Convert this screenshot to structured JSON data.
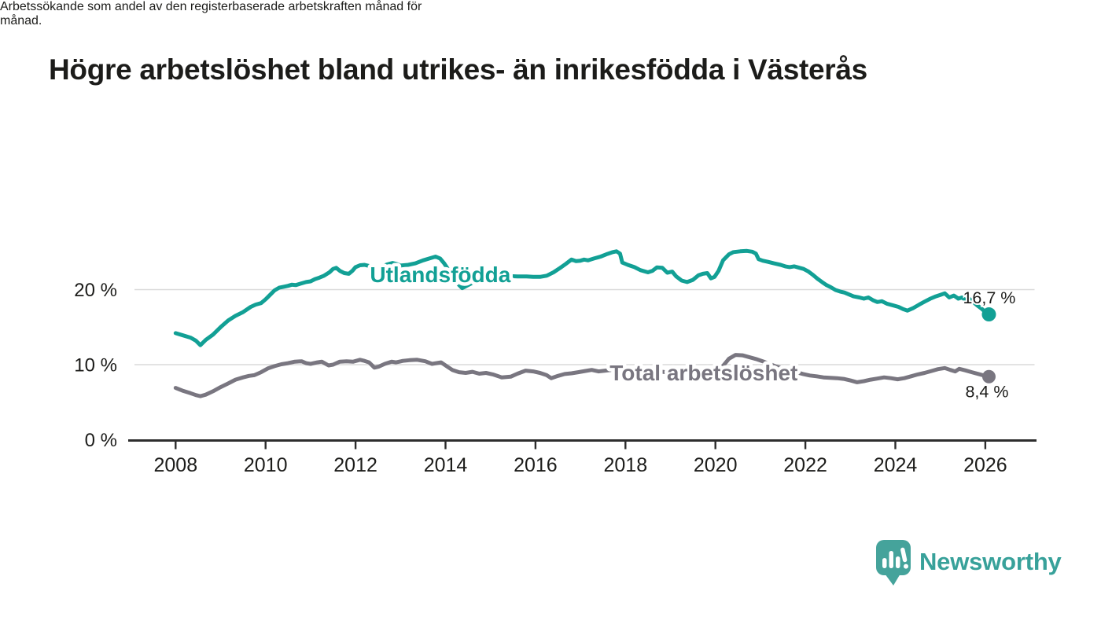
{
  "header": {
    "title": "Högre arbetslöshet bland utrikes- än inrikesfödda i Västerås",
    "subtitle_lines": [
      "Arbetssökande som andel av den registerbaserade arbetskraften månad för",
      "månad."
    ]
  },
  "footer": {
    "brand": "Newsworthy",
    "logo_icon": "speech-bubble-bar-chart-icon"
  },
  "colors": {
    "foreign_born_line": "#12a095",
    "total_line": "#797680",
    "gridline": "#dadada",
    "axis": "#2d2d2d",
    "text": "#1c1c1a",
    "brand_teal": "#45a39b"
  },
  "chart_data": {
    "type": "line",
    "title": "Högre arbetslöshet bland utrikes- än inrikesfödda i Västerås",
    "subtitle": "Arbetssökande som andel av den registerbaserade arbetskraften månad för månad.",
    "xlabel": "",
    "ylabel": "",
    "unit": "%",
    "x_axis": {
      "range": [
        2006.95,
        2027.15
      ],
      "ticks": [
        2008,
        2010,
        2012,
        2014,
        2016,
        2018,
        2020,
        2022,
        2024,
        2026
      ]
    },
    "y_axis": {
      "range": [
        0,
        26.3
      ],
      "ticks": [
        {
          "value": 0,
          "label": "0 %"
        },
        {
          "value": 10,
          "label": "10 %"
        },
        {
          "value": 20,
          "label": "20 %"
        }
      ],
      "grid": true
    },
    "legend_position": "inline-labels-on-lines",
    "series": [
      {
        "name": "Utlandsfödda",
        "color": "#12a095",
        "end_value": 16.7,
        "end_label": "16,7 %",
        "label_at": [
          2012.32,
          21.0
        ],
        "points": [
          [
            2008.0,
            14.2
          ],
          [
            2008.17,
            13.9
          ],
          [
            2008.33,
            13.6
          ],
          [
            2008.45,
            13.2
          ],
          [
            2008.55,
            12.6
          ],
          [
            2008.67,
            13.3
          ],
          [
            2008.83,
            14.0
          ],
          [
            2009.0,
            15.0
          ],
          [
            2009.17,
            15.9
          ],
          [
            2009.33,
            16.5
          ],
          [
            2009.5,
            17.0
          ],
          [
            2009.67,
            17.7
          ],
          [
            2009.78,
            18.0
          ],
          [
            2009.9,
            18.2
          ],
          [
            2010.0,
            18.7
          ],
          [
            2010.1,
            19.3
          ],
          [
            2010.2,
            19.9
          ],
          [
            2010.3,
            20.25
          ],
          [
            2010.42,
            20.4
          ],
          [
            2010.5,
            20.5
          ],
          [
            2010.58,
            20.65
          ],
          [
            2010.67,
            20.6
          ],
          [
            2010.78,
            20.8
          ],
          [
            2010.9,
            21.0
          ],
          [
            2011.0,
            21.1
          ],
          [
            2011.1,
            21.4
          ],
          [
            2011.2,
            21.6
          ],
          [
            2011.3,
            21.85
          ],
          [
            2011.42,
            22.3
          ],
          [
            2011.5,
            22.75
          ],
          [
            2011.57,
            22.9
          ],
          [
            2011.65,
            22.5
          ],
          [
            2011.75,
            22.2
          ],
          [
            2011.85,
            22.1
          ],
          [
            2011.93,
            22.5
          ],
          [
            2012.0,
            23.0
          ],
          [
            2012.1,
            23.25
          ],
          [
            2012.2,
            23.3
          ],
          [
            2012.3,
            23.15
          ],
          [
            2012.42,
            22.9
          ],
          [
            2012.5,
            22.8
          ],
          [
            2012.6,
            23.05
          ],
          [
            2012.7,
            23.35
          ],
          [
            2012.82,
            23.55
          ],
          [
            2012.92,
            23.4
          ],
          [
            2013.0,
            23.2
          ],
          [
            2013.17,
            23.3
          ],
          [
            2013.33,
            23.5
          ],
          [
            2013.5,
            23.9
          ],
          [
            2013.67,
            24.2
          ],
          [
            2013.78,
            24.4
          ],
          [
            2013.88,
            24.15
          ],
          [
            2013.97,
            23.5
          ],
          [
            2014.07,
            22.6
          ],
          [
            2014.17,
            21.6
          ],
          [
            2014.27,
            20.8
          ],
          [
            2014.37,
            20.2
          ],
          [
            2014.47,
            20.5
          ],
          [
            2014.58,
            20.85
          ],
          [
            2014.7,
            21.15
          ],
          [
            2014.82,
            21.4
          ],
          [
            2014.93,
            21.6
          ],
          [
            2015.05,
            21.75
          ],
          [
            2015.2,
            21.85
          ],
          [
            2015.4,
            21.8
          ],
          [
            2015.6,
            21.75
          ],
          [
            2015.8,
            21.75
          ],
          [
            2015.95,
            21.7
          ],
          [
            2016.1,
            21.7
          ],
          [
            2016.25,
            21.85
          ],
          [
            2016.4,
            22.3
          ],
          [
            2016.55,
            22.9
          ],
          [
            2016.67,
            23.4
          ],
          [
            2016.8,
            24.0
          ],
          [
            2016.9,
            23.8
          ],
          [
            2017.0,
            23.85
          ],
          [
            2017.08,
            24.0
          ],
          [
            2017.17,
            23.9
          ],
          [
            2017.3,
            24.15
          ],
          [
            2017.45,
            24.4
          ],
          [
            2017.6,
            24.75
          ],
          [
            2017.72,
            25.0
          ],
          [
            2017.8,
            25.1
          ],
          [
            2017.88,
            24.8
          ],
          [
            2017.93,
            23.6
          ],
          [
            2018.05,
            23.3
          ],
          [
            2018.2,
            23.0
          ],
          [
            2018.33,
            22.6
          ],
          [
            2018.5,
            22.3
          ],
          [
            2018.6,
            22.5
          ],
          [
            2018.7,
            22.95
          ],
          [
            2018.82,
            22.9
          ],
          [
            2018.93,
            22.25
          ],
          [
            2019.04,
            22.4
          ],
          [
            2019.13,
            21.75
          ],
          [
            2019.25,
            21.2
          ],
          [
            2019.37,
            21.0
          ],
          [
            2019.5,
            21.3
          ],
          [
            2019.62,
            21.9
          ],
          [
            2019.72,
            22.1
          ],
          [
            2019.82,
            22.2
          ],
          [
            2019.9,
            21.5
          ],
          [
            2019.98,
            21.7
          ],
          [
            2020.07,
            22.5
          ],
          [
            2020.17,
            23.9
          ],
          [
            2020.3,
            24.7
          ],
          [
            2020.4,
            25.0
          ],
          [
            2020.55,
            25.1
          ],
          [
            2020.7,
            25.15
          ],
          [
            2020.82,
            25.05
          ],
          [
            2020.9,
            24.8
          ],
          [
            2020.96,
            24.05
          ],
          [
            2021.05,
            23.85
          ],
          [
            2021.17,
            23.7
          ],
          [
            2021.3,
            23.5
          ],
          [
            2021.45,
            23.3
          ],
          [
            2021.55,
            23.1
          ],
          [
            2021.65,
            23.0
          ],
          [
            2021.75,
            23.1
          ],
          [
            2021.87,
            22.9
          ],
          [
            2021.96,
            22.75
          ],
          [
            2022.07,
            22.4
          ],
          [
            2022.17,
            21.95
          ],
          [
            2022.27,
            21.45
          ],
          [
            2022.37,
            21.0
          ],
          [
            2022.47,
            20.6
          ],
          [
            2022.57,
            20.3
          ],
          [
            2022.67,
            19.95
          ],
          [
            2022.77,
            19.75
          ],
          [
            2022.87,
            19.6
          ],
          [
            2022.97,
            19.35
          ],
          [
            2023.07,
            19.1
          ],
          [
            2023.2,
            18.95
          ],
          [
            2023.3,
            18.8
          ],
          [
            2023.4,
            18.95
          ],
          [
            2023.5,
            18.6
          ],
          [
            2023.6,
            18.35
          ],
          [
            2023.7,
            18.45
          ],
          [
            2023.82,
            18.1
          ],
          [
            2023.95,
            17.9
          ],
          [
            2024.07,
            17.7
          ],
          [
            2024.17,
            17.4
          ],
          [
            2024.27,
            17.2
          ],
          [
            2024.4,
            17.55
          ],
          [
            2024.53,
            18.0
          ],
          [
            2024.65,
            18.4
          ],
          [
            2024.78,
            18.8
          ],
          [
            2024.9,
            19.1
          ],
          [
            2025.0,
            19.3
          ],
          [
            2025.1,
            19.5
          ],
          [
            2025.2,
            18.95
          ],
          [
            2025.3,
            19.2
          ],
          [
            2025.4,
            18.8
          ],
          [
            2025.48,
            18.95
          ],
          [
            2025.56,
            18.6
          ],
          [
            2025.63,
            18.85
          ],
          [
            2025.72,
            18.4
          ],
          [
            2025.82,
            17.9
          ],
          [
            2025.92,
            17.45
          ],
          [
            2026.0,
            17.0
          ],
          [
            2026.08,
            16.7
          ]
        ]
      },
      {
        "name": "Total arbetslöshet",
        "color": "#797680",
        "end_value": 8.4,
        "end_label": "8,4 %",
        "label_at": [
          2017.65,
          7.91
        ],
        "points": [
          [
            2008.0,
            6.9
          ],
          [
            2008.17,
            6.5
          ],
          [
            2008.33,
            6.2
          ],
          [
            2008.45,
            5.95
          ],
          [
            2008.55,
            5.8
          ],
          [
            2008.67,
            6.0
          ],
          [
            2008.83,
            6.45
          ],
          [
            2009.0,
            7.0
          ],
          [
            2009.17,
            7.5
          ],
          [
            2009.33,
            8.0
          ],
          [
            2009.5,
            8.3
          ],
          [
            2009.63,
            8.5
          ],
          [
            2009.75,
            8.6
          ],
          [
            2009.9,
            9.0
          ],
          [
            2010.05,
            9.5
          ],
          [
            2010.2,
            9.8
          ],
          [
            2010.35,
            10.05
          ],
          [
            2010.5,
            10.2
          ],
          [
            2010.65,
            10.4
          ],
          [
            2010.8,
            10.45
          ],
          [
            2010.9,
            10.2
          ],
          [
            2011.0,
            10.1
          ],
          [
            2011.15,
            10.3
          ],
          [
            2011.25,
            10.4
          ],
          [
            2011.4,
            9.9
          ],
          [
            2011.5,
            10.0
          ],
          [
            2011.65,
            10.4
          ],
          [
            2011.8,
            10.45
          ],
          [
            2011.95,
            10.4
          ],
          [
            2012.1,
            10.65
          ],
          [
            2012.2,
            10.5
          ],
          [
            2012.3,
            10.3
          ],
          [
            2012.42,
            9.6
          ],
          [
            2012.52,
            9.75
          ],
          [
            2012.65,
            10.1
          ],
          [
            2012.8,
            10.4
          ],
          [
            2012.9,
            10.3
          ],
          [
            2013.05,
            10.5
          ],
          [
            2013.2,
            10.6
          ],
          [
            2013.37,
            10.65
          ],
          [
            2013.55,
            10.45
          ],
          [
            2013.7,
            10.1
          ],
          [
            2013.9,
            10.3
          ],
          [
            2014.05,
            9.7
          ],
          [
            2014.15,
            9.3
          ],
          [
            2014.3,
            9.0
          ],
          [
            2014.45,
            8.9
          ],
          [
            2014.6,
            9.05
          ],
          [
            2014.75,
            8.8
          ],
          [
            2014.9,
            8.9
          ],
          [
            2015.05,
            8.7
          ],
          [
            2015.25,
            8.3
          ],
          [
            2015.45,
            8.4
          ],
          [
            2015.6,
            8.8
          ],
          [
            2015.78,
            9.2
          ],
          [
            2015.95,
            9.1
          ],
          [
            2016.1,
            8.9
          ],
          [
            2016.25,
            8.6
          ],
          [
            2016.35,
            8.2
          ],
          [
            2016.5,
            8.5
          ],
          [
            2016.65,
            8.75
          ],
          [
            2016.8,
            8.85
          ],
          [
            2016.95,
            9.0
          ],
          [
            2017.1,
            9.15
          ],
          [
            2017.25,
            9.3
          ],
          [
            2017.4,
            9.1
          ],
          [
            2017.55,
            9.2
          ],
          [
            2017.7,
            9.3
          ],
          [
            2018.0,
            9.4
          ],
          [
            2018.3,
            9.3
          ],
          [
            2018.6,
            9.2
          ],
          [
            2018.9,
            9.0
          ],
          [
            2019.2,
            8.9
          ],
          [
            2019.5,
            8.8
          ],
          [
            2019.8,
            8.85
          ],
          [
            2020.0,
            9.0
          ],
          [
            2020.15,
            9.7
          ],
          [
            2020.3,
            10.8
          ],
          [
            2020.45,
            11.3
          ],
          [
            2020.6,
            11.25
          ],
          [
            2020.75,
            11.0
          ],
          [
            2020.9,
            10.75
          ],
          [
            2021.05,
            10.45
          ],
          [
            2021.2,
            10.1
          ],
          [
            2021.35,
            9.75
          ],
          [
            2021.5,
            9.5
          ],
          [
            2021.65,
            9.25
          ],
          [
            2021.8,
            9.0
          ],
          [
            2021.95,
            8.75
          ],
          [
            2022.1,
            8.55
          ],
          [
            2022.25,
            8.45
          ],
          [
            2022.4,
            8.3
          ],
          [
            2022.55,
            8.25
          ],
          [
            2022.7,
            8.2
          ],
          [
            2022.85,
            8.1
          ],
          [
            2023.0,
            7.9
          ],
          [
            2023.15,
            7.65
          ],
          [
            2023.3,
            7.8
          ],
          [
            2023.45,
            8.0
          ],
          [
            2023.6,
            8.15
          ],
          [
            2023.75,
            8.3
          ],
          [
            2023.9,
            8.2
          ],
          [
            2024.05,
            8.05
          ],
          [
            2024.2,
            8.2
          ],
          [
            2024.35,
            8.45
          ],
          [
            2024.5,
            8.7
          ],
          [
            2024.65,
            8.9
          ],
          [
            2024.8,
            9.15
          ],
          [
            2024.95,
            9.4
          ],
          [
            2025.1,
            9.55
          ],
          [
            2025.22,
            9.3
          ],
          [
            2025.33,
            9.1
          ],
          [
            2025.42,
            9.45
          ],
          [
            2025.55,
            9.25
          ],
          [
            2025.7,
            9.0
          ],
          [
            2025.85,
            8.75
          ],
          [
            2026.0,
            8.5
          ],
          [
            2026.08,
            8.4
          ]
        ]
      }
    ]
  }
}
